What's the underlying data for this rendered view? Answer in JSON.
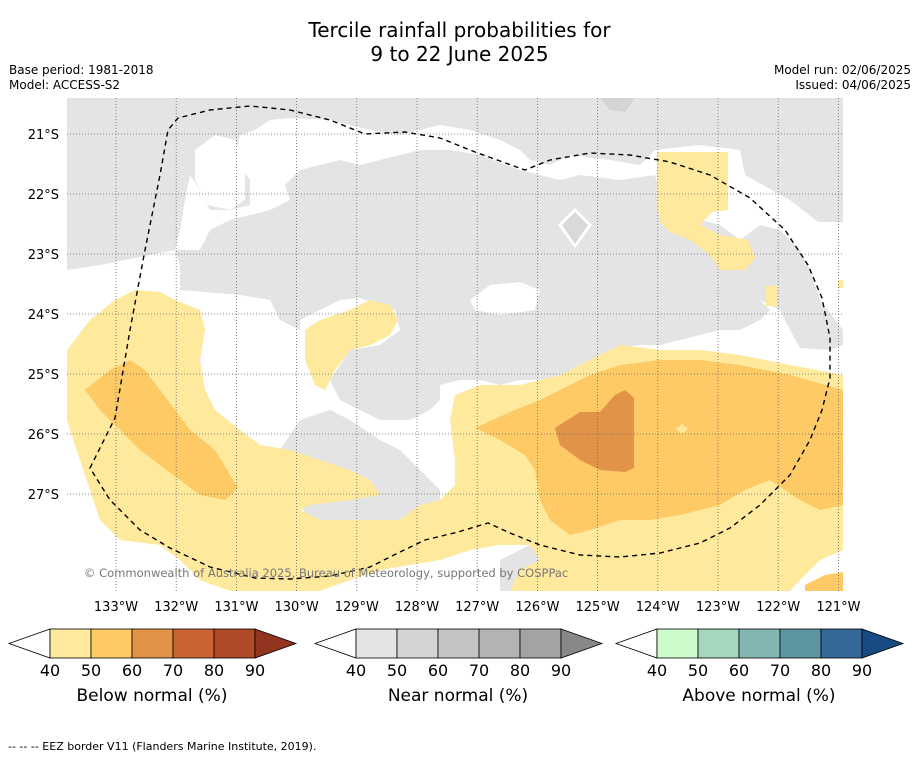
{
  "title": {
    "line1": "Tercile rainfall probabilities for",
    "line2": "9 to 22 June 2025"
  },
  "meta_left": {
    "base_period": "Base period: 1981-2018",
    "model": "Model: ACCESS-S2"
  },
  "meta_right": {
    "model_run": "Model run: 02/06/2025",
    "issued": "Issued: 04/06/2025"
  },
  "map": {
    "lon_labels": [
      "133°W",
      "132°W",
      "131°W",
      "130°W",
      "129°W",
      "128°W",
      "127°W",
      "126°W",
      "125°W",
      "124°W",
      "123°W",
      "122°W",
      "121°W"
    ],
    "lat_labels": [
      "21°S",
      "22°S",
      "23°S",
      "24°S",
      "25°S",
      "26°S",
      "27°S"
    ],
    "copyright": "© Commonwealth of Australia 2025, Bureau of Meteorology, supported by COSPPac",
    "colors": {
      "near_40": "#e4e4e4",
      "below_40": "#fee99c",
      "below_50": "#fdca65",
      "below_60": "#e19347"
    }
  },
  "colorbars": [
    {
      "label": "Below normal (%)",
      "ticks": [
        "40",
        "50",
        "60",
        "70",
        "80",
        "90"
      ],
      "colors": [
        "#fee99c",
        "#fdca65",
        "#e19347",
        "#cc6333",
        "#b04a26",
        "#933420"
      ]
    },
    {
      "label": "Near normal (%)",
      "ticks": [
        "40",
        "50",
        "60",
        "70",
        "80",
        "90"
      ],
      "colors": [
        "#e4e4e4",
        "#d4d4d4",
        "#c4c4c4",
        "#b3b3b3",
        "#a3a3a3",
        "#888888"
      ]
    },
    {
      "label": "Above normal (%)",
      "ticks": [
        "40",
        "50",
        "60",
        "70",
        "80",
        "90"
      ],
      "colors": [
        "#ccfccc",
        "#a4d7bc",
        "#82b7b1",
        "#5c949f",
        "#336897",
        "#184a84"
      ]
    }
  ],
  "footer": "--  --  -- EEZ border V11 (Flanders Marine Institute, 2019)."
}
